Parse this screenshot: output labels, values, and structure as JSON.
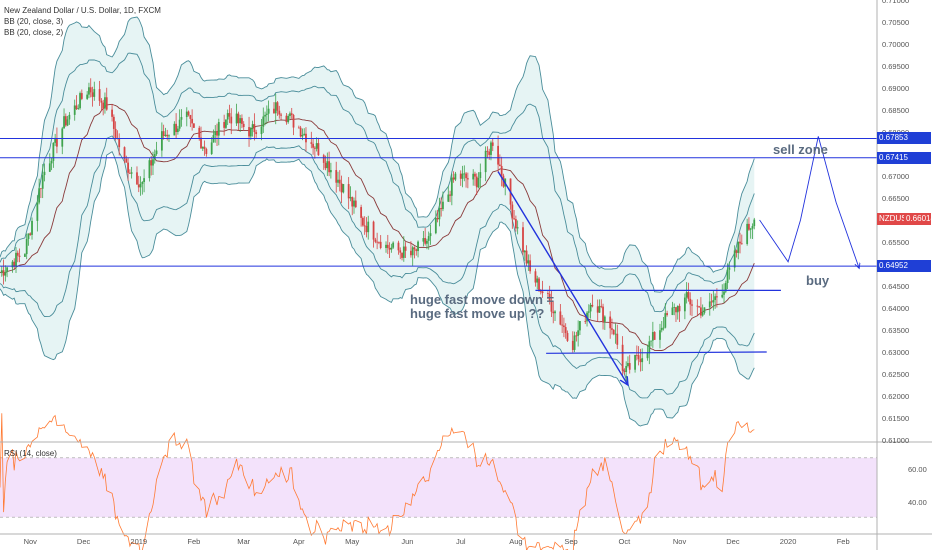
{
  "header": {
    "title": "New Zealand Dollar / U.S. Dollar, 1D, FXCM",
    "indicators": [
      "BB (20, close, 3)",
      "BB (20, close, 2)"
    ],
    "rsi_label": "RSI (14, close)"
  },
  "annotations": {
    "sell_zone": "sell zone",
    "buy": "buy",
    "move_line1": "huge fast move down =",
    "move_line2": "huge fast move up ??"
  },
  "price_tags": [
    {
      "label": "0.67853",
      "value": 0.67853,
      "color": "#1f3fd6"
    },
    {
      "label": "0.67415",
      "value": 0.67415,
      "color": "#1f3fd6"
    },
    {
      "label": "NZDUSD",
      "value": 0.66014,
      "color": "#e04848"
    },
    {
      "label": "0.66014",
      "value": 0.66014,
      "color": "#e04848"
    },
    {
      "label": "0.64952",
      "value": 0.64952,
      "color": "#1f3fd6"
    }
  ],
  "colors": {
    "band_fill": "#dcefef",
    "band_line": "#4a8d9a",
    "basis": "#8a3a3a",
    "up": "#3fa34d",
    "down": "#d64545",
    "hline": "#2233dd",
    "rsi": "#ff7a33",
    "rsi_bg": "#f3e2fb"
  },
  "chart_data": {
    "type": "candlestick",
    "symbol": "NZDUSD",
    "timeframe": "1D",
    "ylim": [
      0.61,
      0.71
    ],
    "y_ticks": [
      "0.71000",
      "0.70500",
      "0.70000",
      "0.69500",
      "0.69000",
      "0.68500",
      "0.68000",
      "0.67500",
      "0.67000",
      "0.66500",
      "0.66000",
      "0.65500",
      "0.65000",
      "0.64500",
      "0.64000",
      "0.63500",
      "0.63000",
      "0.62500",
      "0.62000",
      "0.61500",
      "0.61000"
    ],
    "x_ticks": [
      "Nov",
      "Dec",
      "2019",
      "Feb",
      "Mar",
      "Apr",
      "May",
      "Jun",
      "Jul",
      "Aug",
      "Sep",
      "Oct",
      "Nov",
      "Dec",
      "2020",
      "Feb"
    ],
    "close_path": [
      [
        "2018-10-15",
        0.648
      ],
      [
        "2018-10-29",
        0.653
      ],
      [
        "2018-11-08",
        0.67
      ],
      [
        "2018-11-20",
        0.682
      ],
      [
        "2018-12-04",
        0.69
      ],
      [
        "2018-12-14",
        0.686
      ],
      [
        "2018-12-24",
        0.673
      ],
      [
        "2019-01-03",
        0.668
      ],
      [
        "2019-01-14",
        0.679
      ],
      [
        "2019-01-28",
        0.683
      ],
      [
        "2019-02-08",
        0.676
      ],
      [
        "2019-02-20",
        0.684
      ],
      [
        "2019-03-05",
        0.68
      ],
      [
        "2019-03-20",
        0.686
      ],
      [
        "2019-04-01",
        0.681
      ],
      [
        "2019-04-12",
        0.676
      ],
      [
        "2019-04-25",
        0.668
      ],
      [
        "2019-05-06",
        0.66
      ],
      [
        "2019-05-20",
        0.654
      ],
      [
        "2019-06-03",
        0.652
      ],
      [
        "2019-06-14",
        0.656
      ],
      [
        "2019-06-28",
        0.67
      ],
      [
        "2019-07-10",
        0.669
      ],
      [
        "2019-07-19",
        0.678
      ],
      [
        "2019-07-30",
        0.662
      ],
      [
        "2019-08-09",
        0.648
      ],
      [
        "2019-08-22",
        0.64
      ],
      [
        "2019-09-02",
        0.632
      ],
      [
        "2019-09-13",
        0.642
      ],
      [
        "2019-09-25",
        0.635
      ],
      [
        "2019-10-01",
        0.625
      ],
      [
        "2019-10-14",
        0.631
      ],
      [
        "2019-10-25",
        0.638
      ],
      [
        "2019-11-05",
        0.642
      ],
      [
        "2019-11-15",
        0.639
      ],
      [
        "2019-11-26",
        0.645
      ],
      [
        "2019-12-06",
        0.656
      ],
      [
        "2019-12-13",
        0.6601
      ]
    ],
    "horizontal_levels": [
      0.67853,
      0.67415,
      0.64952
    ],
    "rsi": {
      "label": "RSI (14, close)",
      "levels": [
        70,
        30
      ],
      "tick_labels": [
        "60.00",
        "40.00"
      ],
      "ylim": [
        20,
        80
      ]
    }
  }
}
